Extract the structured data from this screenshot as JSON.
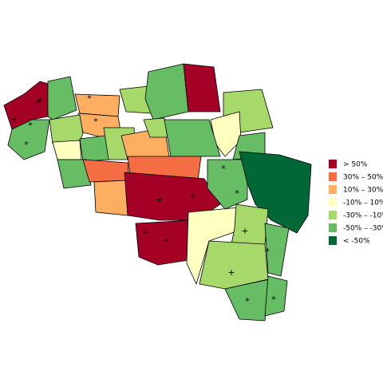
{
  "legend": {
    "items": [
      {
        "label": "> 50%",
        "color": "#a50026"
      },
      {
        "label": "30%  –  50%",
        "color": "#f46d43"
      },
      {
        "label": "10%  –  30%",
        "color": "#fdae61"
      },
      {
        "label": "-10%  –  10%",
        "color": "#ffffbf"
      },
      {
        "label": "-30%  –  -10%",
        "color": "#a6d96a"
      },
      {
        "label": "-50%  –  -30%",
        "color": "#66bd63"
      },
      {
        "label": "< -50%",
        "color": "#006837"
      }
    ]
  },
  "markers": [
    "*",
    "+"
  ]
}
